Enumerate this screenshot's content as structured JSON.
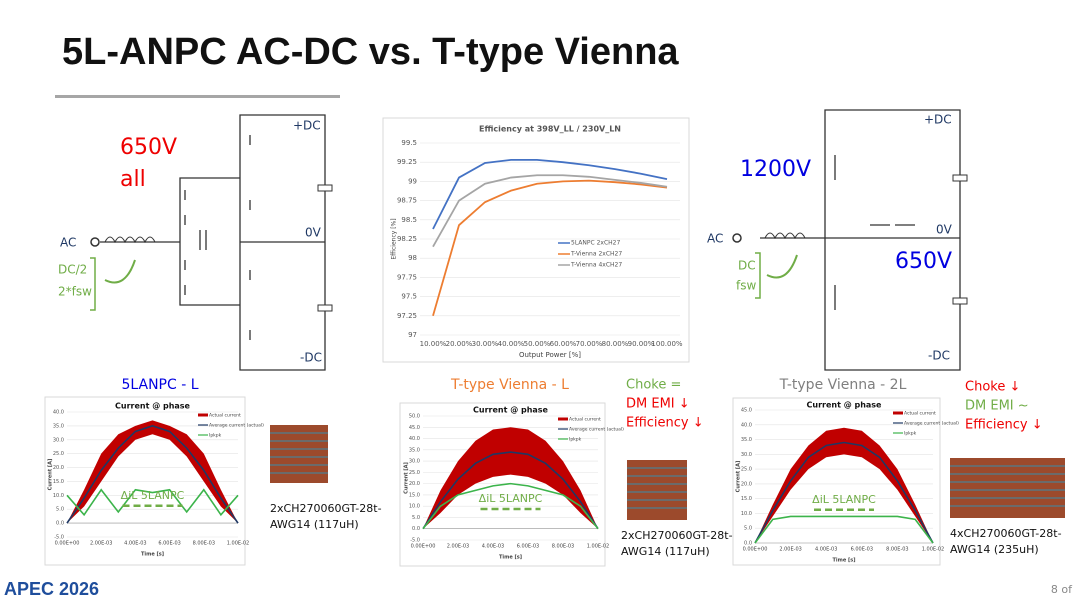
{
  "slide": {
    "title": "5L-ANPC AC-DC vs. T-type Vienna",
    "logo": "APEC 2026",
    "page": "8 of"
  },
  "left_circuit": {
    "voltage": "650V",
    "voltage2": "all",
    "dc_pos": "+DC",
    "dc_mid": "0V",
    "dc_neg": "-DC",
    "ac": "AC",
    "note1": "DC/2",
    "note2": "2*fsw"
  },
  "right_circuit": {
    "voltage": "1200V",
    "voltage_mid": "650V",
    "dc_pos": "+DC",
    "dc_mid": "0V",
    "dc_neg": "-DC",
    "ac": "AC",
    "note1": "DC",
    "note2": "fsw"
  },
  "captions": {
    "c1": "5LANPC - L",
    "c2": "T-type Vienna - L",
    "c3": "T-type Vienna - 2L",
    "mid_notes": [
      "Choke =",
      "DM EMI ↓",
      "Efficiency ↓"
    ],
    "right_notes": [
      "Choke ↓",
      "DM EMI ~",
      "Efficiency ↓"
    ],
    "choke1": [
      "2xCH270060GT-28t-",
      "AWG14 (117uH)"
    ],
    "choke2": [
      "2xCH270060GT-28t-",
      "AWG14 (117uH)"
    ],
    "choke3": [
      "4xCH270060GT-28t-",
      "AWG14 (235uH)"
    ]
  },
  "chart_data": [
    {
      "type": "line",
      "title": "Efficiency at 398V_LL / 230V_LN",
      "x_label": "Output Power [%]",
      "y_label": "Efficiency [%]",
      "categories": [
        "10.00%",
        "20.00%",
        "30.00%",
        "40.00%",
        "50.00%",
        "60.00%",
        "70.00%",
        "80.00%",
        "90.00%",
        "100.00%"
      ],
      "ylim": [
        97,
        99.5
      ],
      "yticks": [
        97,
        97.25,
        97.5,
        97.75,
        98,
        98.25,
        98.5,
        98.75,
        99,
        99.25,
        99.5
      ],
      "grid": true,
      "series": [
        {
          "name": "5LANPC 2xCH27",
          "color": "#4472c4",
          "values": [
            98.38,
            99.05,
            99.24,
            99.28,
            99.28,
            99.25,
            99.21,
            99.16,
            99.1,
            99.03
          ]
        },
        {
          "name": "T-Vienna 2xCH27",
          "color": "#ed7d31",
          "values": [
            97.25,
            98.43,
            98.73,
            98.88,
            98.97,
            99.0,
            99.01,
            98.99,
            98.96,
            98.92
          ]
        },
        {
          "name": "T-Vienna 4xCH27",
          "color": "#a5a5a5",
          "values": [
            98.15,
            98.75,
            98.97,
            99.05,
            99.08,
            99.08,
            99.06,
            99.02,
            98.98,
            98.93
          ]
        }
      ]
    },
    {
      "type": "band-line",
      "title": "Current @ phase",
      "x_label": "Time [s]",
      "y_label": "Current [A]",
      "annotation": "ΔiL 5LANPC",
      "x": [
        0,
        0.001,
        0.002,
        0.003,
        0.004,
        0.005,
        0.006,
        0.007,
        0.008,
        0.009,
        0.01
      ],
      "xlim": [
        0,
        0.01
      ],
      "xticks": [
        {
          "value": 0,
          "label": "0.00E+00"
        },
        {
          "value": 0.002,
          "label": "2.00E-03"
        },
        {
          "value": 0.004,
          "label": "4.00E-03"
        },
        {
          "value": 0.006,
          "label": "6.00E-03"
        },
        {
          "value": 0.008,
          "label": "8.00E-03"
        },
        {
          "value": 0.01,
          "label": "1.00E-02"
        }
      ],
      "ylim": [
        -5,
        40
      ],
      "yticks": [
        {
          "value": -5,
          "label": "-5.0"
        },
        {
          "value": 0,
          "label": "0.0"
        },
        {
          "value": 5,
          "label": "5.0"
        },
        {
          "value": 10,
          "label": "10.0"
        },
        {
          "value": 15,
          "label": "15.0"
        },
        {
          "value": 20,
          "label": "20.0"
        },
        {
          "value": 25,
          "label": "25.0"
        },
        {
          "value": 30,
          "label": "30.0"
        },
        {
          "value": 35,
          "label": "35.0"
        },
        {
          "value": 40,
          "label": "40.0"
        }
      ],
      "series": [
        {
          "name": "Actual current",
          "color": "#c00000",
          "upper": [
            0,
            12,
            25,
            32,
            35,
            37,
            35,
            32,
            25,
            12,
            0
          ],
          "lower": [
            0,
            6,
            15,
            24,
            30,
            32,
            30,
            24,
            15,
            6,
            0
          ]
        },
        {
          "name": "Average current (actual)",
          "color": "#1f3864",
          "values": [
            0,
            9,
            19,
            27,
            33,
            35,
            33,
            27,
            19,
            9,
            0
          ]
        },
        {
          "name": "Ipkpk",
          "color": "#3cb44b",
          "values": [
            10,
            3,
            12,
            4,
            12,
            11,
            12,
            4,
            12,
            3,
            10
          ]
        }
      ]
    },
    {
      "type": "band-line",
      "title": "Current @ phase",
      "x_label": "Time [s]",
      "y_label": "Current [A]",
      "annotation": "ΔiL 5LANPC",
      "x": [
        0,
        0.001,
        0.002,
        0.003,
        0.004,
        0.005,
        0.006,
        0.007,
        0.008,
        0.009,
        0.01
      ],
      "xlim": [
        0,
        0.01
      ],
      "xticks": [
        {
          "value": 0,
          "label": "0.00E+00"
        },
        {
          "value": 0.002,
          "label": "2.00E-03"
        },
        {
          "value": 0.004,
          "label": "4.00E-03"
        },
        {
          "value": 0.006,
          "label": "6.00E-03"
        },
        {
          "value": 0.008,
          "label": "8.00E-03"
        },
        {
          "value": 0.01,
          "label": "1.00E-02"
        }
      ],
      "ylim": [
        -5,
        50
      ],
      "yticks": [
        {
          "value": -5,
          "label": "-5.0"
        },
        {
          "value": 0,
          "label": "0.0"
        },
        {
          "value": 5,
          "label": "5.0"
        },
        {
          "value": 10,
          "label": "10.0"
        },
        {
          "value": 15,
          "label": "15.0"
        },
        {
          "value": 20,
          "label": "20.0"
        },
        {
          "value": 25,
          "label": "25.0"
        },
        {
          "value": 30,
          "label": "30.0"
        },
        {
          "value": 35,
          "label": "35.0"
        },
        {
          "value": 40,
          "label": "40.0"
        },
        {
          "value": 45,
          "label": "45.0"
        },
        {
          "value": 50,
          "label": "50.0"
        }
      ],
      "series": [
        {
          "name": "Actual current",
          "color": "#c00000",
          "upper": [
            0,
            17,
            30,
            39,
            44,
            45,
            44,
            39,
            30,
            17,
            0
          ],
          "lower": [
            0,
            7,
            15,
            20,
            23,
            24,
            23,
            20,
            15,
            7,
            0
          ]
        },
        {
          "name": "Average current (actual)",
          "color": "#1f3864",
          "values": [
            0,
            12,
            22,
            29,
            33,
            34,
            33,
            29,
            22,
            12,
            0
          ]
        },
        {
          "name": "Ipkpk",
          "color": "#3cb44b",
          "values": [
            0,
            10,
            15,
            17,
            19,
            20,
            19,
            17,
            15,
            10,
            0
          ]
        }
      ]
    },
    {
      "type": "band-line",
      "title": "Current @ phase",
      "x_label": "Time [s]",
      "y_label": "Current [A]",
      "annotation": "ΔiL 5LANPC",
      "x": [
        0,
        0.001,
        0.002,
        0.003,
        0.004,
        0.005,
        0.006,
        0.007,
        0.008,
        0.009,
        0.01
      ],
      "xlim": [
        0,
        0.01
      ],
      "xticks": [
        {
          "value": 0,
          "label": "0.00E+00"
        },
        {
          "value": 0.002,
          "label": "2.00E-03"
        },
        {
          "value": 0.004,
          "label": "4.00E-03"
        },
        {
          "value": 0.006,
          "label": "6.00E-03"
        },
        {
          "value": 0.008,
          "label": "8.00E-03"
        },
        {
          "value": 0.01,
          "label": "1.00E-02"
        }
      ],
      "ylim": [
        0,
        45
      ],
      "yticks": [
        {
          "value": 0,
          "label": "0.0"
        },
        {
          "value": 5,
          "label": "5.0"
        },
        {
          "value": 10,
          "label": "10.0"
        },
        {
          "value": 15,
          "label": "15.0"
        },
        {
          "value": 20,
          "label": "20.0"
        },
        {
          "value": 25,
          "label": "25.0"
        },
        {
          "value": 30,
          "label": "30.0"
        },
        {
          "value": 35,
          "label": "35.0"
        },
        {
          "value": 40,
          "label": "40.0"
        },
        {
          "value": 45,
          "label": "45.0"
        }
      ],
      "series": [
        {
          "name": "Actual current",
          "color": "#c00000",
          "upper": [
            0,
            13,
            25,
            33,
            38,
            39,
            38,
            33,
            25,
            13,
            0
          ],
          "lower": [
            0,
            9,
            18,
            25,
            29,
            30,
            29,
            25,
            18,
            9,
            0
          ]
        },
        {
          "name": "Average current (actual)",
          "color": "#1f3864",
          "values": [
            0,
            11,
            21,
            29,
            33,
            34,
            33,
            29,
            21,
            11,
            0
          ]
        },
        {
          "name": "Ipkpk",
          "color": "#3cb44b",
          "values": [
            0,
            8,
            9,
            9,
            9,
            9,
            9,
            9,
            9,
            8,
            0
          ]
        }
      ]
    }
  ]
}
